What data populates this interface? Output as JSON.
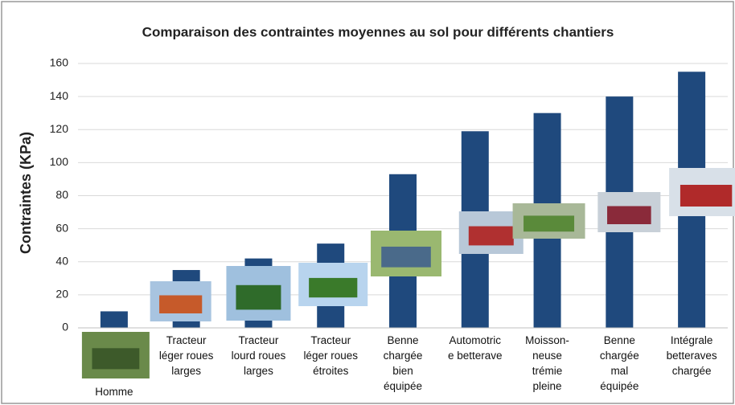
{
  "chart_data": {
    "type": "bar",
    "title": "Comparaison des contraintes moyennes au sol pour différents chantiers",
    "y_label": "Contraintes (KPa)",
    "categories": [
      "Homme",
      "Tracteur léger roues larges",
      "Tracteur lourd roues larges",
      "Tracteur léger roues étroites",
      "Benne chargée bien équipée",
      "Automotrice betterave",
      "Moisson-neuse trémie pleine",
      "Benne chargée mal équipée",
      "Intégrale betteraves chargée"
    ],
    "values": [
      10,
      35,
      42,
      51,
      93,
      119,
      130,
      140,
      155
    ],
    "color": "#1f497d",
    "ylim": [
      0,
      160
    ],
    "yticks": [
      0,
      20,
      40,
      60,
      80,
      100,
      120,
      140,
      160
    ],
    "grid": true
  }
}
